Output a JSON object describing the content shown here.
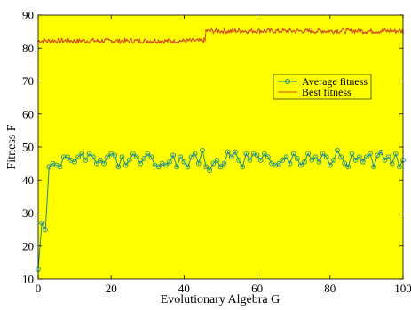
{
  "chart_data": {
    "type": "line",
    "xlabel": "Evolutionary Algebra G",
    "ylabel": "Fitness F",
    "xlim": [
      0,
      100
    ],
    "ylim": [
      10,
      90
    ],
    "x_ticks": [
      "0",
      "20",
      "40",
      "60",
      "80",
      "100"
    ],
    "y_ticks": [
      "10",
      "20",
      "30",
      "40",
      "50",
      "60",
      "70",
      "80",
      "90"
    ],
    "grid": false,
    "legend_position": "upper-right",
    "background_color": "#ffff00",
    "series": [
      {
        "name": "Average fitness",
        "color": "#1a8a8a",
        "marker": "circle",
        "x": [
          0,
          1,
          2,
          3,
          4,
          5,
          6,
          7,
          8,
          9,
          10,
          11,
          12,
          13,
          14,
          15,
          16,
          17,
          18,
          19,
          20,
          21,
          22,
          23,
          24,
          25,
          26,
          27,
          28,
          29,
          30,
          31,
          32,
          33,
          34,
          35,
          36,
          37,
          38,
          39,
          40,
          41,
          42,
          43,
          44,
          45,
          46,
          47,
          48,
          49,
          50,
          51,
          52,
          53,
          54,
          55,
          56,
          57,
          58,
          59,
          60,
          61,
          62,
          63,
          64,
          65,
          66,
          67,
          68,
          69,
          70,
          71,
          72,
          73,
          74,
          75,
          76,
          77,
          78,
          79,
          80,
          81,
          82,
          83,
          84,
          85,
          86,
          87,
          88,
          89,
          90,
          91,
          92,
          93,
          94,
          95,
          96,
          97,
          98,
          99,
          100
        ],
        "values": [
          13,
          27,
          25,
          44,
          45,
          44.5,
          44,
          47,
          47,
          46,
          45.5,
          47,
          48,
          46,
          48,
          47,
          45,
          46,
          45,
          47,
          48,
          47.5,
          44,
          47,
          44.5,
          46,
          48,
          47,
          45,
          46.5,
          48,
          47,
          44.5,
          44,
          45,
          44.5,
          45.5,
          47.5,
          44,
          47,
          45.5,
          44,
          47,
          48,
          45,
          49,
          44,
          43,
          45,
          46,
          44,
          45,
          48.5,
          47,
          48.5,
          46,
          44,
          48,
          46,
          48,
          47.5,
          46,
          48,
          47,
          45,
          44.5,
          45,
          46,
          47,
          45,
          48,
          46.5,
          44.5,
          45.5,
          48,
          46,
          47,
          45.5,
          48,
          47,
          44.5,
          46,
          49,
          47,
          45,
          44,
          48,
          46,
          47,
          45.5,
          47,
          48,
          44,
          47.5,
          48.5,
          46,
          47,
          45,
          48,
          44,
          46
        ]
      },
      {
        "name": "Best fitness",
        "color": "#d2451e",
        "marker": "point",
        "x_range": [
          0,
          100
        ],
        "level_before": 82.2,
        "step_at": 46,
        "level_after": 85.2,
        "noise": 0.7
      }
    ]
  }
}
